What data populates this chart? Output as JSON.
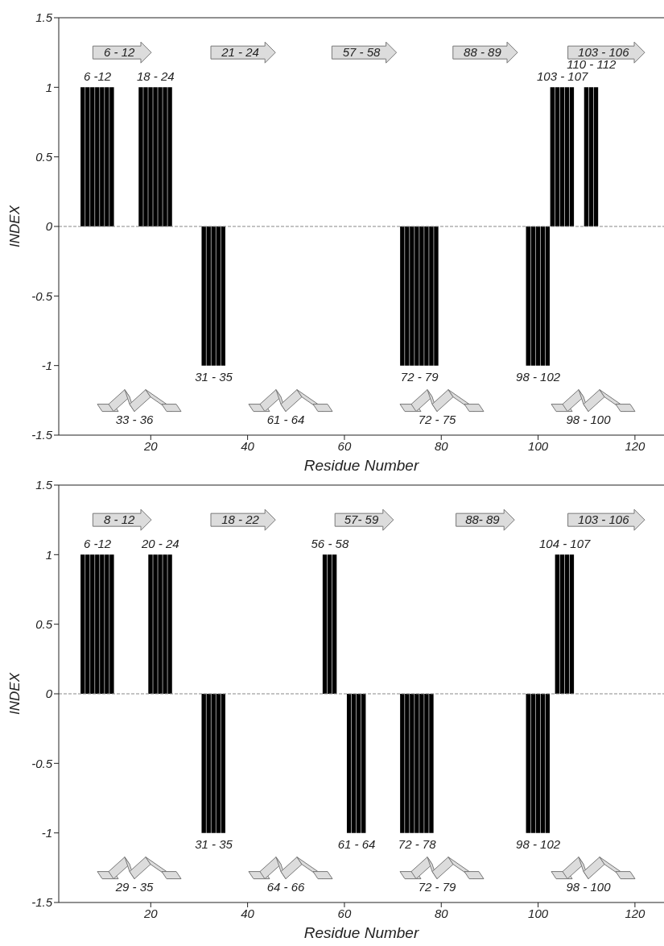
{
  "chart_data": [
    {
      "type": "bar",
      "xlabel": "Residue Number",
      "ylabel": "INDEX",
      "color": "#000000",
      "x": [
        6,
        7,
        8,
        9,
        10,
        11,
        12,
        18,
        19,
        20,
        21,
        22,
        23,
        24,
        31,
        32,
        33,
        34,
        35,
        72,
        73,
        74,
        75,
        76,
        77,
        78,
        79,
        98,
        99,
        100,
        101,
        102,
        103,
        104,
        105,
        106,
        107,
        110,
        111,
        112
      ],
      "values": [
        1,
        1,
        1,
        1,
        1,
        1,
        1,
        1,
        1,
        1,
        1,
        1,
        1,
        1,
        -1,
        -1,
        -1,
        -1,
        -1,
        -1,
        -1,
        -1,
        -1,
        -1,
        -1,
        -1,
        -1,
        -1,
        -1,
        -1,
        -1,
        -1,
        1,
        1,
        1,
        1,
        1,
        1,
        1,
        1
      ],
      "xlim": [
        1,
        126
      ],
      "xticks": [
        20,
        40,
        60,
        80,
        100,
        120
      ],
      "ylim": [
        -1.5,
        1.5
      ],
      "yticks": [
        -1.5,
        -1,
        -0.5,
        0,
        0.5,
        1,
        1.5
      ],
      "ref_lines": [
        {
          "axis": "y",
          "value": 0,
          "color": "#888888",
          "line_style": "dashed"
        }
      ],
      "annotations": [
        "6 - 12",
        "21 - 24",
        "57 - 58",
        "88 - 89",
        "103 - 106",
        {
          "text": "6 -12",
          "x": 9,
          "y": 1
        },
        {
          "text": "18 - 24",
          "x": 21,
          "y": 1
        },
        {
          "text": "103 - 107",
          "x": 105,
          "y": 1
        },
        {
          "text": "110 - 112",
          "x": 111,
          "y": 1
        },
        {
          "text": "31 - 35",
          "x": 33,
          "y": -1
        },
        {
          "text": "72 - 79",
          "x": 75.5,
          "y": -1
        },
        {
          "text": "98 - 102",
          "x": 100,
          "y": -1
        },
        "33 - 36",
        "61 - 64",
        "72 - 75",
        "98 - 100"
      ]
    },
    {
      "type": "bar",
      "xlabel": "Residue Number",
      "ylabel": "INDEX",
      "color": "#000000",
      "x": [
        6,
        7,
        8,
        9,
        10,
        11,
        12,
        20,
        21,
        22,
        23,
        24,
        31,
        32,
        33,
        34,
        35,
        56,
        57,
        58,
        61,
        62,
        63,
        64,
        72,
        73,
        74,
        75,
        76,
        77,
        78,
        98,
        99,
        100,
        101,
        102,
        104,
        105,
        106,
        107
      ],
      "values": [
        1,
        1,
        1,
        1,
        1,
        1,
        1,
        1,
        1,
        1,
        1,
        1,
        -1,
        -1,
        -1,
        -1,
        -1,
        1,
        1,
        1,
        -1,
        -1,
        -1,
        -1,
        -1,
        -1,
        -1,
        -1,
        -1,
        -1,
        -1,
        -1,
        -1,
        -1,
        -1,
        -1,
        1,
        1,
        1,
        1
      ],
      "xlim": [
        1,
        126
      ],
      "xticks": [
        20,
        40,
        60,
        80,
        100,
        120
      ],
      "ylim": [
        -1.5,
        1.5
      ],
      "yticks": [
        -1.5,
        -1,
        -0.5,
        0,
        0.5,
        1,
        1.5
      ],
      "ref_lines": [
        {
          "axis": "y",
          "value": 0,
          "color": "#888888",
          "line_style": "dashed"
        }
      ],
      "annotations": [
        "8 - 12",
        "18 - 22",
        "57- 59",
        "88- 89",
        "103 - 106",
        {
          "text": "6 -12",
          "x": 9,
          "y": 1
        },
        {
          "text": "20 - 24",
          "x": 22,
          "y": 1
        },
        {
          "text": "56 - 58",
          "x": 57,
          "y": 1
        },
        {
          "text": "104 - 107",
          "x": 105.5,
          "y": 1
        },
        {
          "text": "31 - 35",
          "x": 33,
          "y": -1
        },
        {
          "text": "61 - 64",
          "x": 62.5,
          "y": -1
        },
        {
          "text": "72 - 78",
          "x": 75,
          "y": -1
        },
        {
          "text": "98 - 102",
          "x": 100,
          "y": -1
        },
        "29 - 35",
        "64 - 66",
        "72 - 79",
        "98 - 100"
      ]
    }
  ]
}
